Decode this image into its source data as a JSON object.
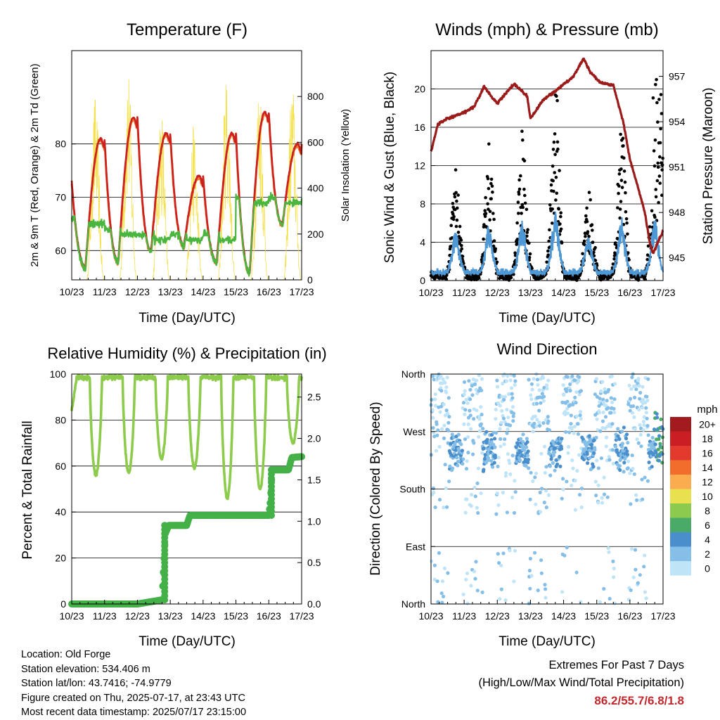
{
  "colors": {
    "temp_2m": "#cc1f1f",
    "temp_9m": "#ee7a2a",
    "dewpoint": "#4ab53f",
    "insolation": "#f4e04a",
    "wind": "#4f98d6",
    "gust": "#000000",
    "pressure": "#9b1b1b",
    "rh": "#8ccb4c",
    "precip": "#44b048",
    "extremes": "#c0282d"
  },
  "time_ticks": [
    "10/23",
    "11/23",
    "12/23",
    "13/23",
    "14/23",
    "15/23",
    "16/23",
    "17/23"
  ],
  "footer": {
    "location": "Location: Old Forge",
    "elevation": "Station elevation: 534.406 m",
    "latlon": "Station lat/lon: 43.7416; -74.9779",
    "created": "Figure created on Thu, 2025-07-17, at 23:43 UTC",
    "recent": "Most recent data timestamp: 2025/07/17 23:15:00",
    "extremes_title": "Extremes For Past 7 Days",
    "extremes_sub": "(High/Low/Max Wind/Total Precipitation)",
    "extremes_values": "86.2/55.7/6.8/1.8"
  },
  "chart_data": [
    {
      "type": "line",
      "title": "Temperature (F)",
      "xlabel": "Time (Day/UTC)",
      "ylabel": "2m & 9m T (Red, Orange) & 2m Td (Green)",
      "ylabel_right": "Solar Insolation (Yellow)",
      "x_ticks": [
        "10/23",
        "11/23",
        "12/23",
        "13/23",
        "14/23",
        "15/23",
        "16/23",
        "17/23"
      ],
      "ylim": [
        54.5,
        97.5
      ],
      "y_ticks": [
        60,
        70,
        80
      ],
      "y2lim": [
        0,
        1000
      ],
      "y2_ticks": [
        0,
        200,
        400,
        600,
        800
      ],
      "grid": true,
      "daily_max_temp": [
        81,
        85,
        82,
        74,
        82,
        86,
        80
      ],
      "daily_min_temp": [
        57,
        58,
        60,
        61,
        58,
        56,
        65
      ],
      "daily_max_dewpoint": [
        66,
        64,
        63,
        63,
        63,
        70
      ],
      "daily_max_insolation": [
        820,
        960,
        780,
        680,
        920,
        900,
        880
      ],
      "series": [
        {
          "name": "2m T"
        },
        {
          "name": "9m T"
        },
        {
          "name": "2m Td"
        },
        {
          "name": "Solar Insolation"
        }
      ]
    },
    {
      "type": "scatter",
      "title": "Winds (mph) & Pressure (mb)",
      "xlabel": "Time (Day/UTC)",
      "ylabel": "Sonic Wind & Gust (Blue, Black)",
      "ylabel_right": "Station Pressure (Maroon)",
      "x_ticks": [
        "10/23",
        "11/23",
        "12/23",
        "13/23",
        "14/23",
        "15/23",
        "16/23",
        "17/23"
      ],
      "ylim": [
        0,
        24
      ],
      "y_ticks": [
        0,
        4,
        8,
        12,
        16,
        20
      ],
      "y2lim": [
        943.5,
        958.7
      ],
      "y2_ticks": [
        945,
        948,
        951,
        954,
        957
      ],
      "grid": true,
      "pressure": {
        "days": [
          0,
          0.2,
          0.5,
          1.0,
          1.3,
          1.6,
          2.0,
          2.5,
          2.9,
          3.0,
          3.4,
          3.8,
          4.3,
          4.6,
          4.8,
          5.1,
          5.5,
          5.8,
          6.0,
          6.2,
          6.45,
          6.6,
          6.7,
          7.0
        ],
        "values": [
          952.0,
          953.8,
          954.2,
          954.6,
          955.0,
          956.3,
          955.2,
          956.5,
          955.7,
          954.2,
          955.5,
          956.1,
          957.0,
          958.2,
          957.3,
          956.6,
          956.4,
          954.0,
          951.5,
          950.0,
          948.0,
          946.0,
          945.3,
          946.8
        ]
      },
      "gust_daily_peaks": [
        11.5,
        14,
        15,
        21.5,
        9,
        16,
        13,
        21
      ],
      "wind_daily_peaks": [
        4.5,
        5,
        5.5,
        6.5,
        4,
        5.5,
        5.5,
        6.8
      ]
    },
    {
      "type": "line",
      "title": "Relative Humidity (%) & Precipitation (in)",
      "xlabel": "Time (Day/UTC)",
      "ylabel": "Percent & Total Rainfall",
      "x_ticks": [
        "10/23",
        "11/23",
        "12/23",
        "13/23",
        "14/23",
        "15/23",
        "16/23",
        "17/23"
      ],
      "ylim": [
        0,
        100
      ],
      "y_ticks": [
        0,
        20,
        40,
        60,
        80,
        100
      ],
      "y2lim": [
        0,
        2.778
      ],
      "y2_ticks": [
        "0.0",
        "0.5",
        "1.0",
        "1.5",
        "2.0",
        "2.5"
      ],
      "grid": true,
      "rh_daily_min": [
        56,
        57,
        63,
        59,
        46,
        50,
        70
      ],
      "precip": {
        "days": [
          0,
          2.0,
          2.75,
          2.8,
          2.85,
          2.95,
          3.5,
          3.6,
          6.0,
          6.05,
          6.1,
          6.6,
          6.7,
          7.0
        ],
        "values": [
          0,
          0,
          0.05,
          0.45,
          0.85,
          0.95,
          0.95,
          1.07,
          1.07,
          1.25,
          1.62,
          1.62,
          1.77,
          1.78
        ]
      }
    },
    {
      "type": "scatter",
      "title": "Wind Direction",
      "xlabel": "Time (Day/UTC)",
      "ylabel": "Direction (Colored By Speed)",
      "x_ticks": [
        "10/23",
        "11/23",
        "12/23",
        "13/23",
        "14/23",
        "15/23",
        "16/23",
        "17/23"
      ],
      "y_ticks": [
        "North",
        "West",
        "South",
        "East",
        "North"
      ],
      "ylim": [
        0,
        360
      ],
      "grid": true,
      "legend": {
        "title": "mph",
        "labels": [
          "20+",
          "18",
          "16",
          "14",
          "12",
          "10",
          "8",
          "6",
          "4",
          "2",
          "0"
        ],
        "colors": [
          "#a31b1f",
          "#c81e24",
          "#e23a2d",
          "#f26c2c",
          "#fbac4e",
          "#e9e04f",
          "#8cc94f",
          "#4aab69",
          "#4a8fcb",
          "#85bfe8",
          "#c0e4f7"
        ],
        "placement": "right"
      }
    }
  ]
}
